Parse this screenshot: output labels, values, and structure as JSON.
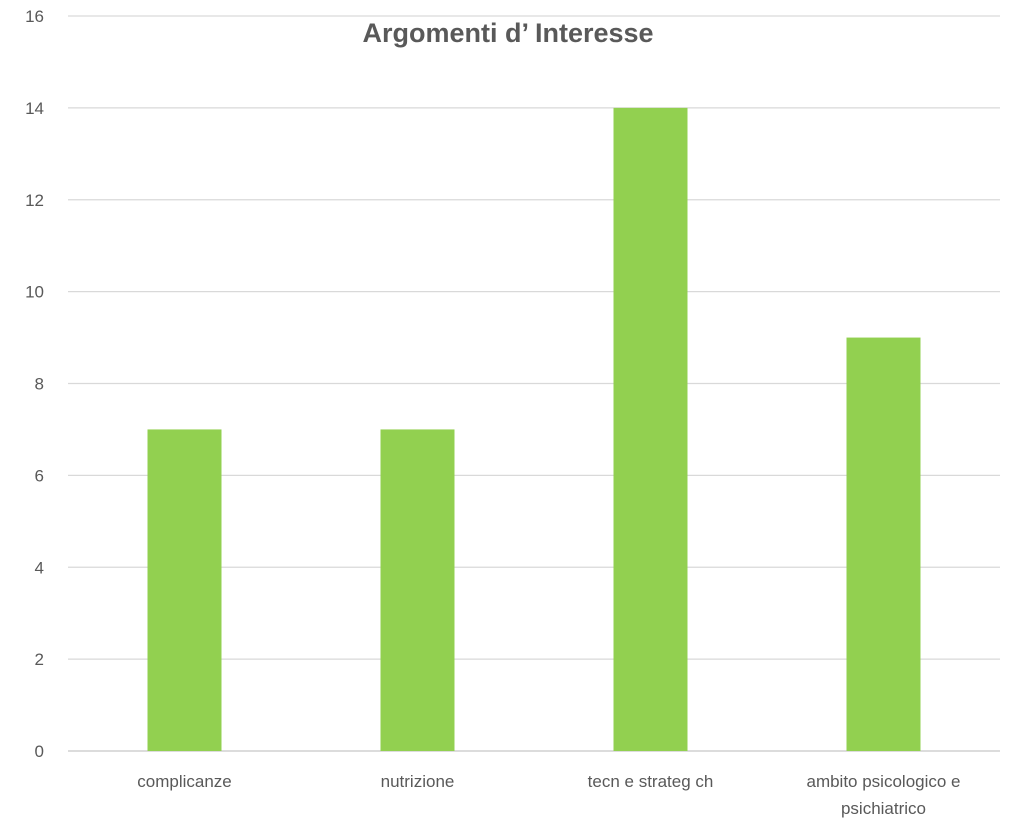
{
  "chart_data": {
    "type": "bar",
    "title": "Argomenti d’ Interesse",
    "categories": [
      [
        "complicanze"
      ],
      [
        "nutrizione"
      ],
      [
        "tecn e strateg ch"
      ],
      [
        "ambito psicologico e",
        "psichiatrico"
      ]
    ],
    "values": [
      7,
      7,
      14,
      9
    ],
    "xlabel": "",
    "ylabel": "",
    "ylim": [
      0,
      16
    ],
    "yticks": [
      0,
      2,
      4,
      6,
      8,
      10,
      12,
      14,
      16
    ],
    "grid": true,
    "legend": "none",
    "bar_color": "#92d050"
  }
}
